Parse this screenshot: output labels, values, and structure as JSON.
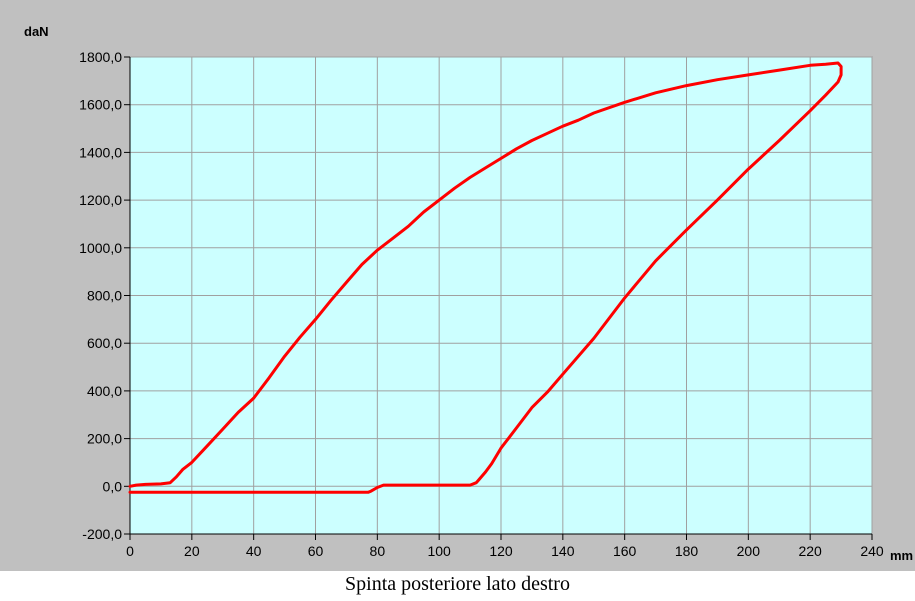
{
  "caption": "Spinta posteriore lato destro",
  "chart_data": {
    "type": "line",
    "xunit": "mm",
    "yunit": "daN",
    "xlim": [
      0,
      240
    ],
    "ylim": [
      -200,
      1800
    ],
    "x_ticks": [
      0,
      20,
      40,
      60,
      80,
      100,
      120,
      140,
      160,
      180,
      200,
      220,
      240
    ],
    "x_tick_labels": [
      "0",
      "20",
      "40",
      "60",
      "80",
      "100",
      "120",
      "140",
      "160",
      "180",
      "200",
      "220",
      "240"
    ],
    "y_ticks": [
      -200,
      0,
      200,
      400,
      600,
      800,
      1000,
      1200,
      1400,
      1600,
      1800
    ],
    "y_tick_labels": [
      "-200,0",
      "0,0",
      "200,0",
      "400,0",
      "600,0",
      "800,0",
      "1000,0",
      "1200,0",
      "1400,0",
      "1600,0",
      "1800,0"
    ],
    "grid": true,
    "colors": {
      "plot_bg": "#ccffff",
      "frame_bg": "#c0c0c0",
      "grid": "#a0a0a0",
      "line": "#ff0000"
    },
    "series": [
      {
        "x": [
          0,
          2,
          5,
          10,
          13,
          15,
          17,
          20,
          25,
          30,
          35,
          40,
          45,
          50,
          55,
          60,
          65,
          70,
          75,
          80,
          85,
          90,
          95,
          100,
          105,
          110,
          115,
          120,
          125,
          130,
          135,
          140,
          145,
          150,
          160,
          170,
          180,
          190,
          200,
          210,
          220,
          225,
          229,
          230,
          230,
          229,
          225,
          220,
          210,
          200,
          190,
          180,
          175,
          170,
          160,
          150,
          140,
          135,
          130,
          125,
          120,
          117,
          115,
          113,
          112,
          110,
          100,
          90,
          85,
          83,
          82,
          80,
          78,
          77,
          60,
          40,
          20,
          0
        ],
        "y": [
          0,
          5,
          8,
          10,
          15,
          40,
          70,
          100,
          170,
          240,
          310,
          370,
          455,
          545,
          625,
          700,
          780,
          855,
          930,
          990,
          1040,
          1090,
          1150,
          1200,
          1250,
          1295,
          1335,
          1375,
          1415,
          1450,
          1480,
          1510,
          1535,
          1565,
          1610,
          1650,
          1680,
          1705,
          1725,
          1745,
          1765,
          1770,
          1775,
          1760,
          1725,
          1695,
          1640,
          1575,
          1450,
          1330,
          1200,
          1075,
          1010,
          945,
          790,
          620,
          470,
          395,
          330,
          245,
          160,
          95,
          60,
          30,
          15,
          5,
          5,
          5,
          5,
          5,
          5,
          -5,
          -20,
          -25,
          -25,
          -25,
          -25,
          -25
        ]
      }
    ]
  }
}
